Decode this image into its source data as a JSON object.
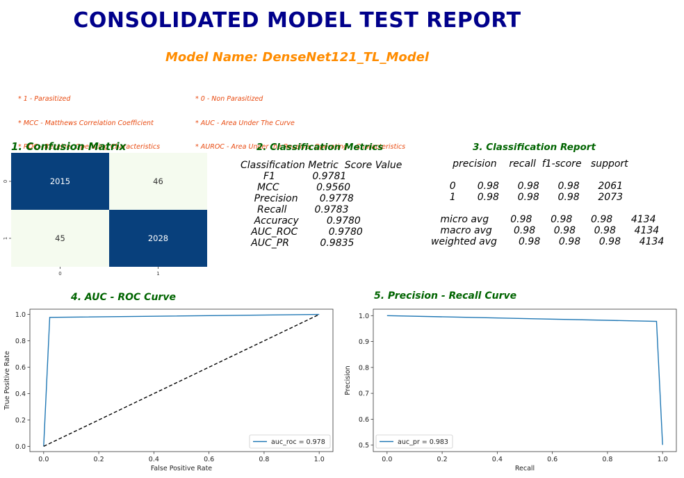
{
  "report": {
    "title": "CONSOLIDATED MODEL TEST REPORT",
    "model_name": "Model Name: DenseNet121_TL_Model",
    "legend_left": [
      "* 1 - Parasitized",
      "* MCC - Matthews Correlation Coefficient",
      "* ROC - Receiver Operating Characteristics"
    ],
    "legend_right": [
      "* 0 - Non Parasitized",
      "* AUC - Area Under The Curve",
      "* AUROC - Area Under the Receiver Operating    Characteristics"
    ]
  },
  "sections": {
    "confusion": "1. Confusion Matrix",
    "metrics": "2. Classification Metrics",
    "report": "3. Classification Report",
    "roc": "4. AUC - ROC Curve",
    "pr": "5. Precision - Recall Curve"
  },
  "metrics_table": {
    "header": "Classification Metric  Score Value",
    "rows": [
      "           F1            0.9781",
      "         MCC            0.9560",
      "        Precision       0.9778",
      "         Recall         0.9783",
      "        Accuracy         0.9780",
      "       AUC_ROC          0.9780",
      "       AUC_PR          0.9835"
    ]
  },
  "class_report": {
    "header": "       precision    recall  f1-score   support",
    "blank": "",
    "rows": [
      "",
      "      0       0.98      0.98      0.98      2061",
      "      1       0.98      0.98      0.98      2073",
      "",
      "   micro avg       0.98      0.98      0.98      4134",
      "   macro avg       0.98      0.98      0.98      4134",
      "weighted avg       0.98      0.98      0.98      4134"
    ]
  },
  "chart_data": [
    {
      "type": "heatmap",
      "title": "1. Confusion Matrix",
      "x_labels": [
        "0",
        "1"
      ],
      "y_labels": [
        "0",
        "1"
      ],
      "values": [
        [
          2015,
          46
        ],
        [
          45,
          2028
        ]
      ],
      "colors": {
        "high": "#08407c",
        "low": "#f5fbef",
        "text_high": "#ffffff",
        "text_low": "#333333"
      }
    },
    {
      "type": "line",
      "title": "4. AUC - ROC Curve",
      "xlabel": "False Positive Rate",
      "ylabel": "True Positive Rate",
      "xlim": [
        -0.05,
        1.05
      ],
      "ylim": [
        -0.04,
        1.04
      ],
      "xticks": [
        "0.0",
        "0.2",
        "0.4",
        "0.6",
        "0.8",
        "1.0"
      ],
      "yticks": [
        "0.0",
        "0.2",
        "0.4",
        "0.6",
        "0.8",
        "1.0"
      ],
      "series": [
        {
          "name": "auc_roc = 0.978",
          "x": [
            0,
            0.022,
            1.0
          ],
          "y": [
            0,
            0.978,
            1.0
          ],
          "color": "#1f77b4",
          "dash": false
        },
        {
          "x": [
            0,
            1
          ],
          "y": [
            0,
            1
          ],
          "color": "#000000",
          "dash": true
        }
      ],
      "legend": "lower right"
    },
    {
      "type": "line",
      "title": "5. Precision - Recall Curve",
      "xlabel": "Recall",
      "ylabel": "Precision",
      "xlim": [
        -0.05,
        1.05
      ],
      "ylim": [
        0.475,
        1.025
      ],
      "xticks": [
        "0.0",
        "0.2",
        "0.4",
        "0.6",
        "0.8",
        "1.0"
      ],
      "yticks": [
        "0.5",
        "0.6",
        "0.7",
        "0.8",
        "0.9",
        "1.0"
      ],
      "series": [
        {
          "name": "auc_pr = 0.983",
          "x": [
            0,
            0.978,
            1.0
          ],
          "y": [
            1.0,
            0.978,
            0.501
          ],
          "color": "#1f77b4",
          "dash": false
        }
      ],
      "legend": "lower left"
    }
  ]
}
